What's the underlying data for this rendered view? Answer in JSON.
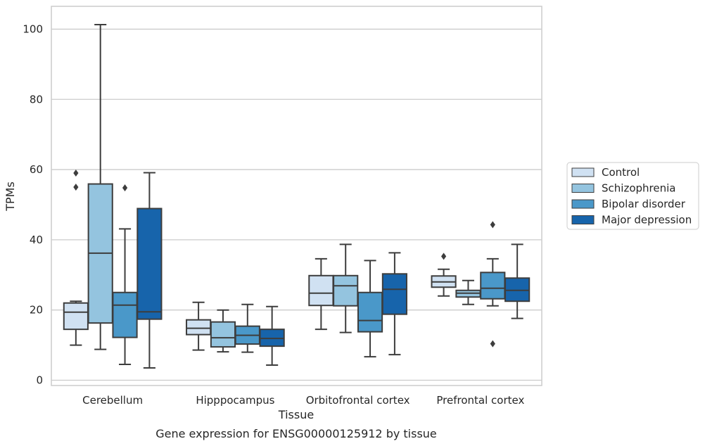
{
  "chart_data": {
    "type": "boxplot",
    "title": "Gene expression for ENSG00000125912 by tissue",
    "xlabel": "Tissue",
    "ylabel": "TPMs",
    "ylim": [
      -1.5,
      106.5
    ],
    "yticks": [
      0,
      20,
      40,
      60,
      80,
      100
    ],
    "grid": true,
    "legend_position": "right",
    "categories": [
      "Cerebellum",
      "Hipppocampus",
      "Orbitofrontal cortex",
      "Prefrontal cortex"
    ],
    "series": [
      {
        "name": "Control",
        "color": "#d0e1f2",
        "boxes": [
          {
            "q1": 14.5,
            "median": 19.4,
            "q3": 22.0,
            "whislo": 10.0,
            "whishi": 22.5,
            "fliers": [
              55.0,
              59.0
            ]
          },
          {
            "q1": 13.0,
            "median": 14.8,
            "q3": 17.2,
            "whislo": 8.6,
            "whishi": 22.2,
            "fliers": []
          },
          {
            "q1": 21.3,
            "median": 24.8,
            "q3": 29.8,
            "whislo": 14.5,
            "whishi": 34.6,
            "fliers": []
          },
          {
            "q1": 26.5,
            "median": 28.0,
            "q3": 29.7,
            "whislo": 24.0,
            "whishi": 31.6,
            "fliers": [
              35.3
            ]
          }
        ]
      },
      {
        "name": "Schizophrenia",
        "color": "#94c4df",
        "boxes": [
          {
            "q1": 16.3,
            "median": 36.2,
            "q3": 55.9,
            "whislo": 8.8,
            "whishi": 101.3,
            "fliers": []
          },
          {
            "q1": 9.5,
            "median": 12.1,
            "q3": 16.6,
            "whislo": 8.1,
            "whishi": 20.0,
            "fliers": []
          },
          {
            "q1": 21.2,
            "median": 26.9,
            "q3": 29.8,
            "whislo": 13.6,
            "whishi": 38.7,
            "fliers": []
          },
          {
            "q1": 23.7,
            "median": 24.8,
            "q3": 25.6,
            "whislo": 21.6,
            "whishi": 28.4,
            "fliers": []
          }
        ]
      },
      {
        "name": "Bipolar disorder",
        "color": "#4a98c9",
        "boxes": [
          {
            "q1": 12.2,
            "median": 21.4,
            "q3": 25.0,
            "whislo": 4.5,
            "whishi": 43.1,
            "fliers": [
              54.8
            ]
          },
          {
            "q1": 10.3,
            "median": 12.8,
            "q3": 15.4,
            "whislo": 8.0,
            "whishi": 21.6,
            "fliers": []
          },
          {
            "q1": 13.8,
            "median": 17.0,
            "q3": 25.0,
            "whislo": 6.7,
            "whishi": 34.1,
            "fliers": []
          },
          {
            "q1": 23.2,
            "median": 26.2,
            "q3": 30.7,
            "whislo": 21.2,
            "whishi": 34.6,
            "fliers": [
              10.4,
              44.3
            ]
          }
        ]
      },
      {
        "name": "Major depression",
        "color": "#1764ab",
        "boxes": [
          {
            "q1": 17.4,
            "median": 19.5,
            "q3": 48.9,
            "whislo": 3.5,
            "whishi": 59.1,
            "fliers": []
          },
          {
            "q1": 9.7,
            "median": 11.9,
            "q3": 14.5,
            "whislo": 4.3,
            "whishi": 21.0,
            "fliers": []
          },
          {
            "q1": 18.8,
            "median": 25.9,
            "q3": 30.3,
            "whislo": 7.3,
            "whishi": 36.3,
            "fliers": []
          },
          {
            "q1": 22.5,
            "median": 25.6,
            "q3": 29.1,
            "whislo": 17.6,
            "whishi": 38.7,
            "fliers": []
          }
        ]
      }
    ]
  }
}
